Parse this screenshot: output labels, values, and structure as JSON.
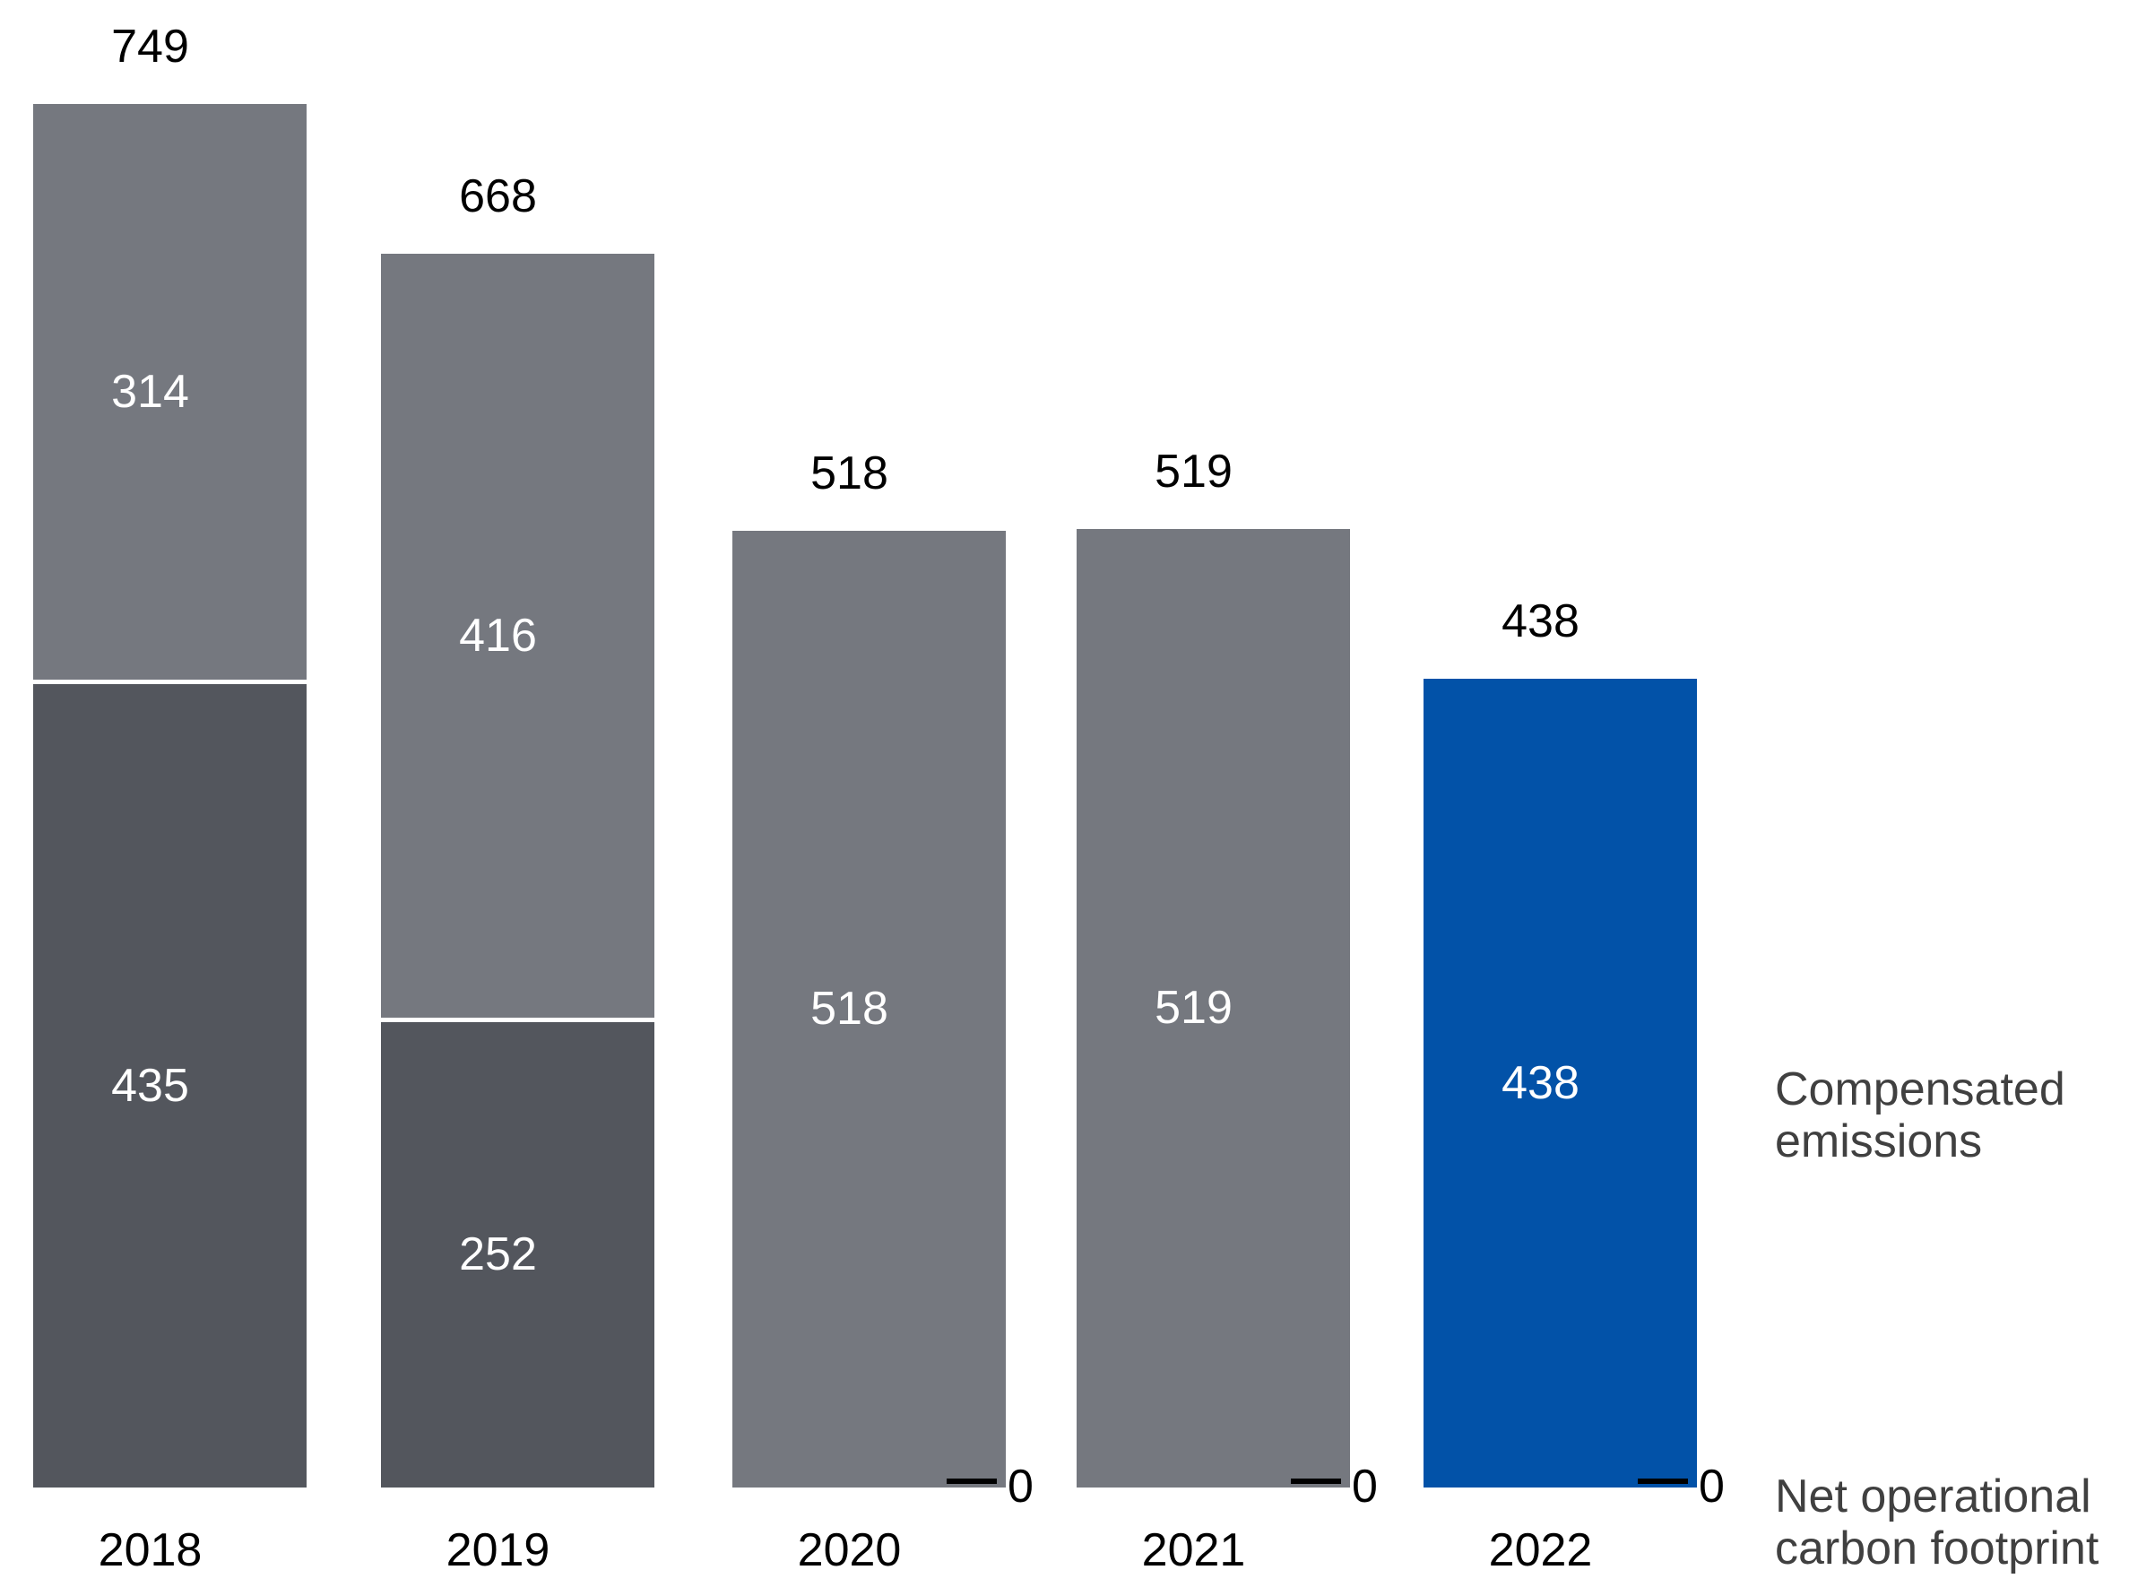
{
  "chart_data": {
    "type": "bar",
    "stacked": true,
    "title": "",
    "xlabel": "",
    "ylabel": "",
    "grid": false,
    "categories": [
      "2018",
      "2019",
      "2020",
      "2021",
      "2022"
    ],
    "series": [
      {
        "name": "Net operational carbon footprint",
        "values": [
          435,
          252,
          0,
          0,
          0
        ],
        "color": "#53565D",
        "position": "bottom"
      },
      {
        "name": "Compensated emissions",
        "values": [
          314,
          416,
          518,
          519,
          438
        ],
        "color": "#75787F",
        "position": "top",
        "highlight": {
          "index": 4,
          "color": "#0252A8"
        }
      }
    ],
    "totals": [
      749,
      668,
      518,
      519,
      438
    ],
    "zero_label": "0",
    "ylim": [
      0,
      780
    ],
    "legend_position": "right"
  },
  "legend": {
    "compensated_emissions": "Compensated\nemissions",
    "net_operational": "Net operational\ncarbon footprint"
  }
}
